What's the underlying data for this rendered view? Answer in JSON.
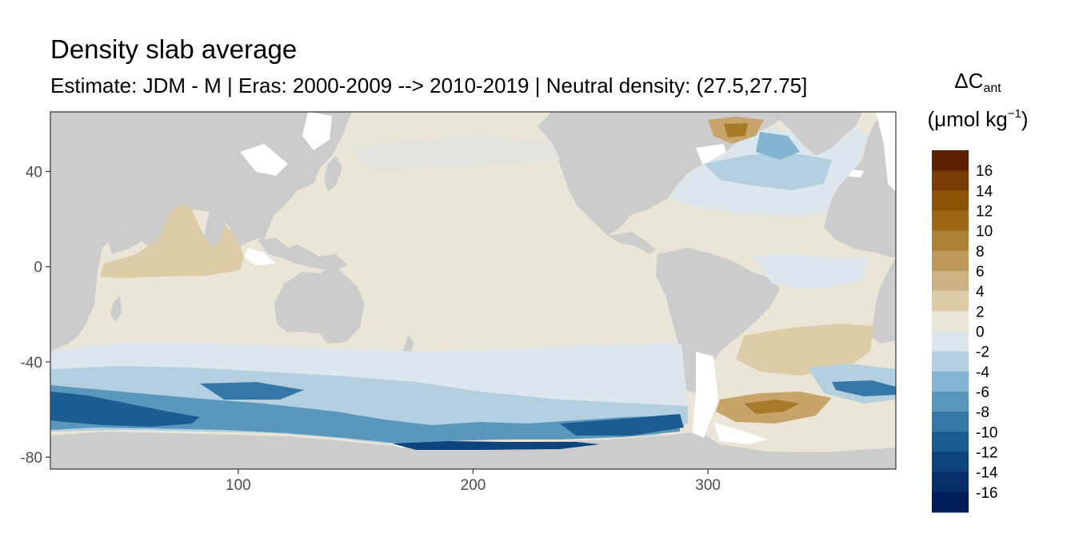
{
  "title": "Density slab average",
  "subtitle": "Estimate: JDM - M | Eras: 2000-2009 --> 2010-2019 | Neutral density: (27.5,27.75]",
  "legend": {
    "symbol": "ΔC",
    "symbol_sub": "ant",
    "unit_prefix": "(μmol kg",
    "unit_sup": "−1",
    "unit_suffix": ")",
    "labels": [
      "16",
      "14",
      "12",
      "10",
      "8",
      "6",
      "4",
      "2",
      "0",
      "-2",
      "-4",
      "-6",
      "-8",
      "-10",
      "-12",
      "-14",
      "-16"
    ],
    "colors": [
      "#5e2004",
      "#7a3a05",
      "#8e5208",
      "#9e6718",
      "#ad8236",
      "#bd9a5b",
      "#cdb384",
      "#ddcca7",
      "#ebe5d8",
      "#dce6ec",
      "#b3cfe0",
      "#83b4d1",
      "#5997bd",
      "#3578a8",
      "#1b5d93",
      "#0e447d",
      "#072e69",
      "#001d5a"
    ]
  },
  "axes": {
    "x_ticks": [
      100,
      200,
      300
    ],
    "y_ticks": [
      40,
      0,
      -40,
      -80
    ],
    "x_range": [
      20,
      380
    ],
    "y_range": [
      -85,
      65
    ]
  },
  "map_colors": {
    "land": "#cccccc",
    "no_data": "#ffffff",
    "neutral": "#ebe5d8",
    "light_positive": "#ddcca7",
    "positive": "#c7a46a",
    "strong_positive": "#a9792a",
    "light_negative": "#dce6ec",
    "negative": "#b3cfe0",
    "mid_negative": "#5997bd",
    "strong_negative": "#1b5d93",
    "deep_negative": "#0e447d"
  }
}
